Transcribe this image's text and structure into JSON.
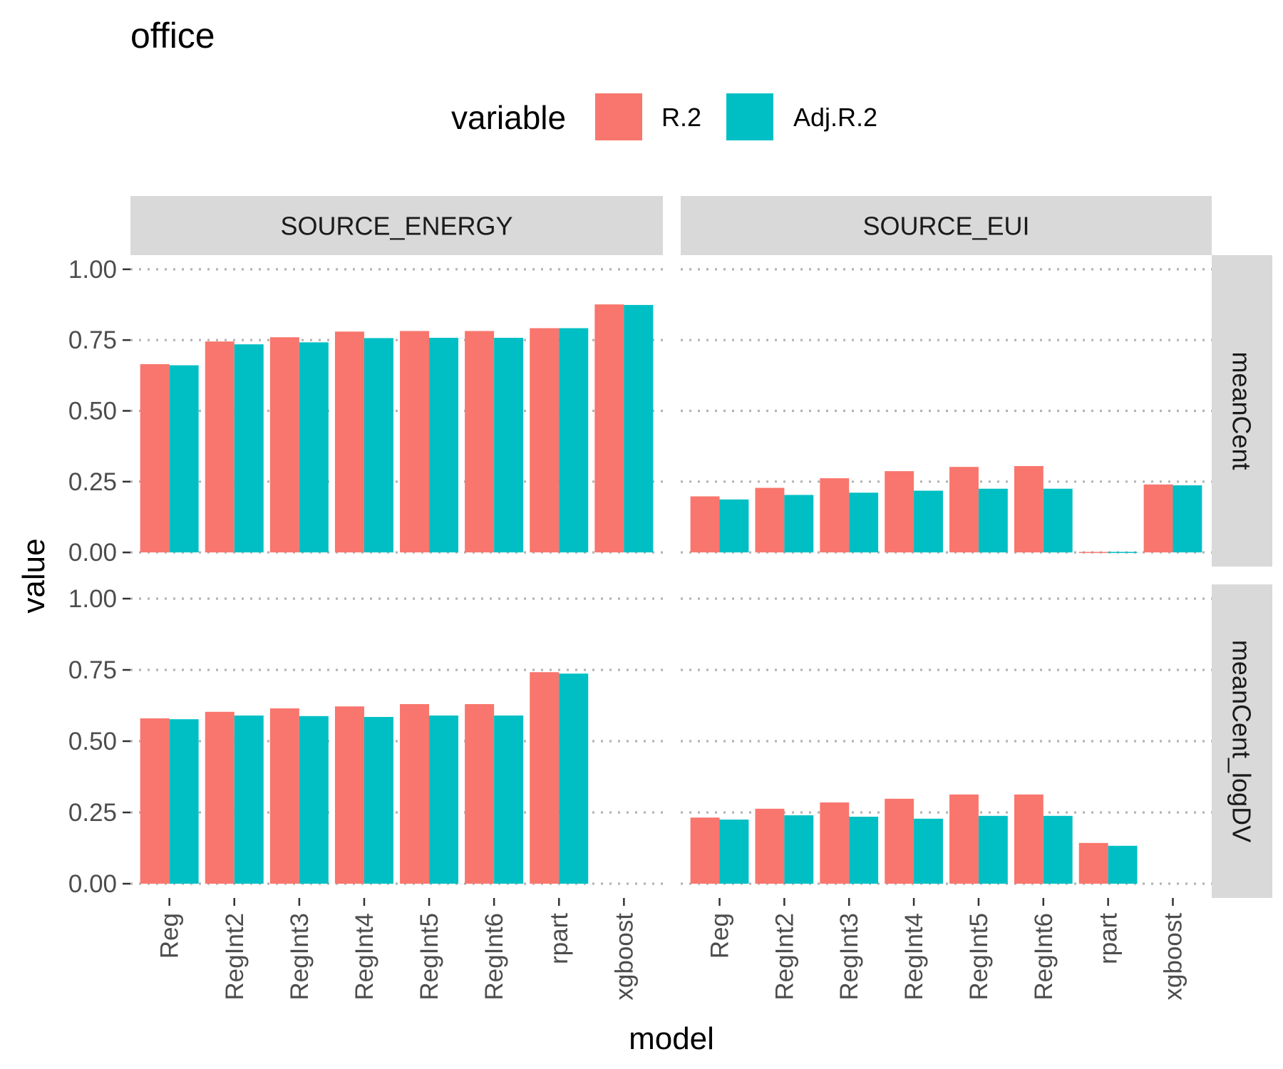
{
  "chart_data": {
    "type": "bar",
    "title": "office",
    "xlabel": "model",
    "ylabel": "value",
    "legend": {
      "title": "variable",
      "position": "top"
    },
    "ylim": [
      0,
      1
    ],
    "yticks": [
      "0.00",
      "0.25",
      "0.50",
      "0.75",
      "1.00"
    ],
    "grid": "dotted-major",
    "categories": [
      "Reg",
      "RegInt2",
      "RegInt3",
      "RegInt4",
      "RegInt5",
      "RegInt6",
      "rpart",
      "xgboost"
    ],
    "columns": [
      "SOURCE_ENERGY",
      "SOURCE_EUI"
    ],
    "rows": [
      "meanCent",
      "meanCent_logDV"
    ],
    "series": [
      {
        "name": "R.2",
        "color": "#F8766D"
      },
      {
        "name": "Adj.R.2",
        "color": "#00BFC4"
      }
    ],
    "panels": [
      {
        "column": "SOURCE_ENERGY",
        "row": "meanCent",
        "values": {
          "R.2": [
            0.665,
            0.745,
            0.76,
            0.78,
            0.782,
            0.782,
            0.792,
            0.876
          ],
          "Adj.R.2": [
            0.661,
            0.735,
            0.742,
            0.757,
            0.758,
            0.758,
            0.792,
            0.874
          ]
        }
      },
      {
        "column": "SOURCE_EUI",
        "row": "meanCent",
        "values": {
          "R.2": [
            0.198,
            0.228,
            0.262,
            0.287,
            0.302,
            0.305,
            0.0,
            0.24
          ],
          "Adj.R.2": [
            0.187,
            0.203,
            0.211,
            0.218,
            0.225,
            0.225,
            -0.003,
            0.237
          ]
        }
      },
      {
        "column": "SOURCE_ENERGY",
        "row": "meanCent_logDV",
        "values": {
          "R.2": [
            0.58,
            0.603,
            0.615,
            0.622,
            0.63,
            0.63,
            0.742,
            null
          ],
          "Adj.R.2": [
            0.577,
            0.59,
            0.588,
            0.585,
            0.59,
            0.59,
            0.737,
            null
          ]
        }
      },
      {
        "column": "SOURCE_EUI",
        "row": "meanCent_logDV",
        "values": {
          "R.2": [
            0.232,
            0.263,
            0.285,
            0.298,
            0.313,
            0.313,
            0.143,
            null
          ],
          "Adj.R.2": [
            0.225,
            0.24,
            0.235,
            0.228,
            0.238,
            0.238,
            0.133,
            null
          ]
        }
      }
    ]
  }
}
